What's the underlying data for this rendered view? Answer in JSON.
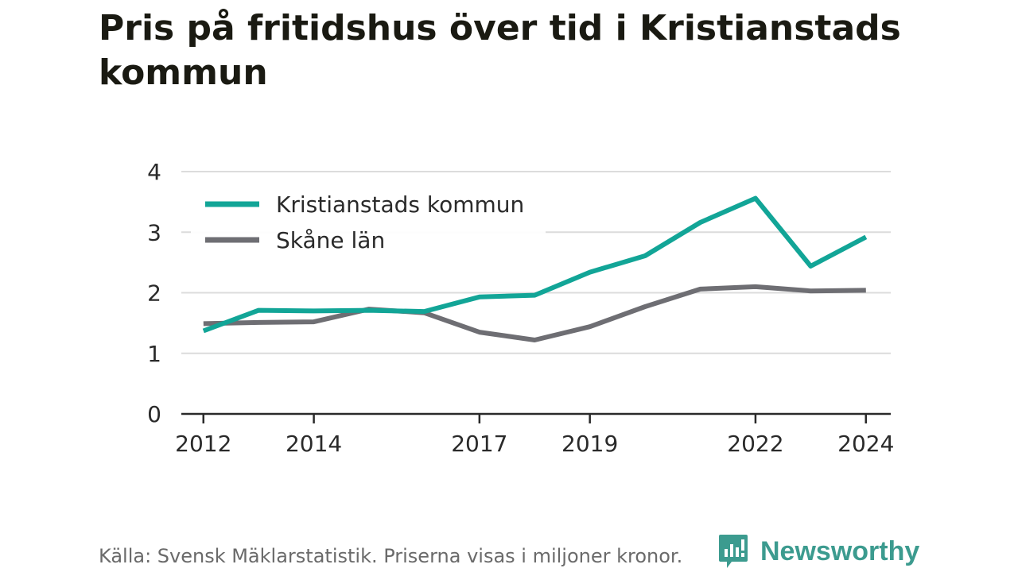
{
  "chart_data": {
    "type": "line",
    "title": "Pris på fritidshus över tid i Kristianstads kommun",
    "x": [
      2012,
      2013,
      2014,
      2015,
      2016,
      2017,
      2018,
      2019,
      2020,
      2021,
      2022,
      2023,
      2024
    ],
    "x_tick_labels": [
      "2012",
      "2014",
      "2017",
      "2019",
      "2022",
      "2024"
    ],
    "y_tick_labels": [
      "0",
      "1",
      "2",
      "3",
      "4"
    ],
    "ylim": [
      0,
      4
    ],
    "grid": true,
    "legend_position": "top-left",
    "series": [
      {
        "name": "Kristianstads kommun",
        "color": "#12a597",
        "values": [
          1.37,
          1.71,
          1.7,
          1.71,
          1.69,
          1.93,
          1.96,
          2.34,
          2.61,
          3.16,
          3.56,
          2.44,
          2.92
        ]
      },
      {
        "name": "Skåne län",
        "color": "#6e6e73",
        "values": [
          1.49,
          1.51,
          1.52,
          1.73,
          1.67,
          1.35,
          1.22,
          1.44,
          1.77,
          2.06,
          2.1,
          2.03,
          2.04
        ]
      }
    ]
  },
  "footer": {
    "source": "Källa: Svensk Mäklarstatistik. Priserna visas i miljoner kronor.",
    "brand": "Newsworthy"
  },
  "colors": {
    "brand": "#3c9b8f",
    "grid": "#dcdcdc",
    "axis": "#2a2a2a"
  }
}
